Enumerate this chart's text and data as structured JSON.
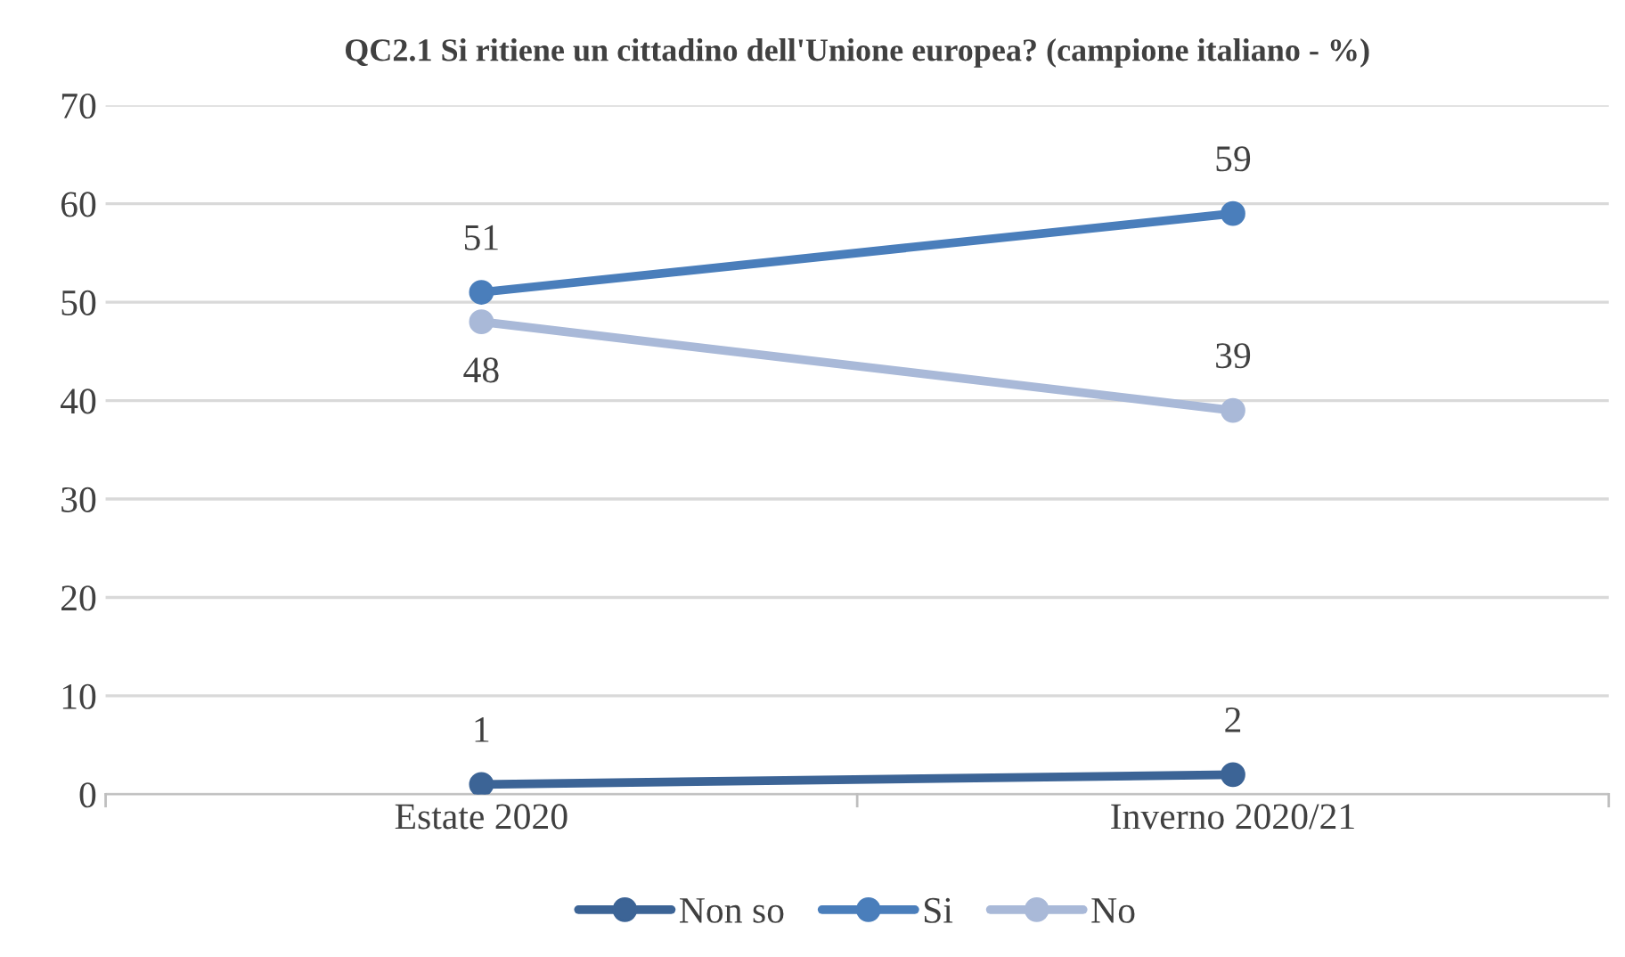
{
  "chart_data": {
    "type": "line",
    "title": "QC2.1 Si ritiene un cittadino dell'Unione europea? (campione italiano - %)",
    "categories": [
      "Estate 2020",
      "Inverno 2020/21"
    ],
    "series": [
      {
        "name": "Non so",
        "color": "#3c6496",
        "values": [
          1,
          2
        ]
      },
      {
        "name": "Si",
        "color": "#4a7ebb",
        "values": [
          51,
          59
        ]
      },
      {
        "name": "No",
        "color": "#a9b9d8",
        "values": [
          48,
          39
        ]
      }
    ],
    "ylim": [
      0,
      70
    ],
    "yticks": [
      0,
      10,
      20,
      30,
      40,
      50,
      60,
      70
    ],
    "grid": "y",
    "legend": "bottom",
    "marker": "circle",
    "line_style": "solid",
    "data_labels": true
  }
}
